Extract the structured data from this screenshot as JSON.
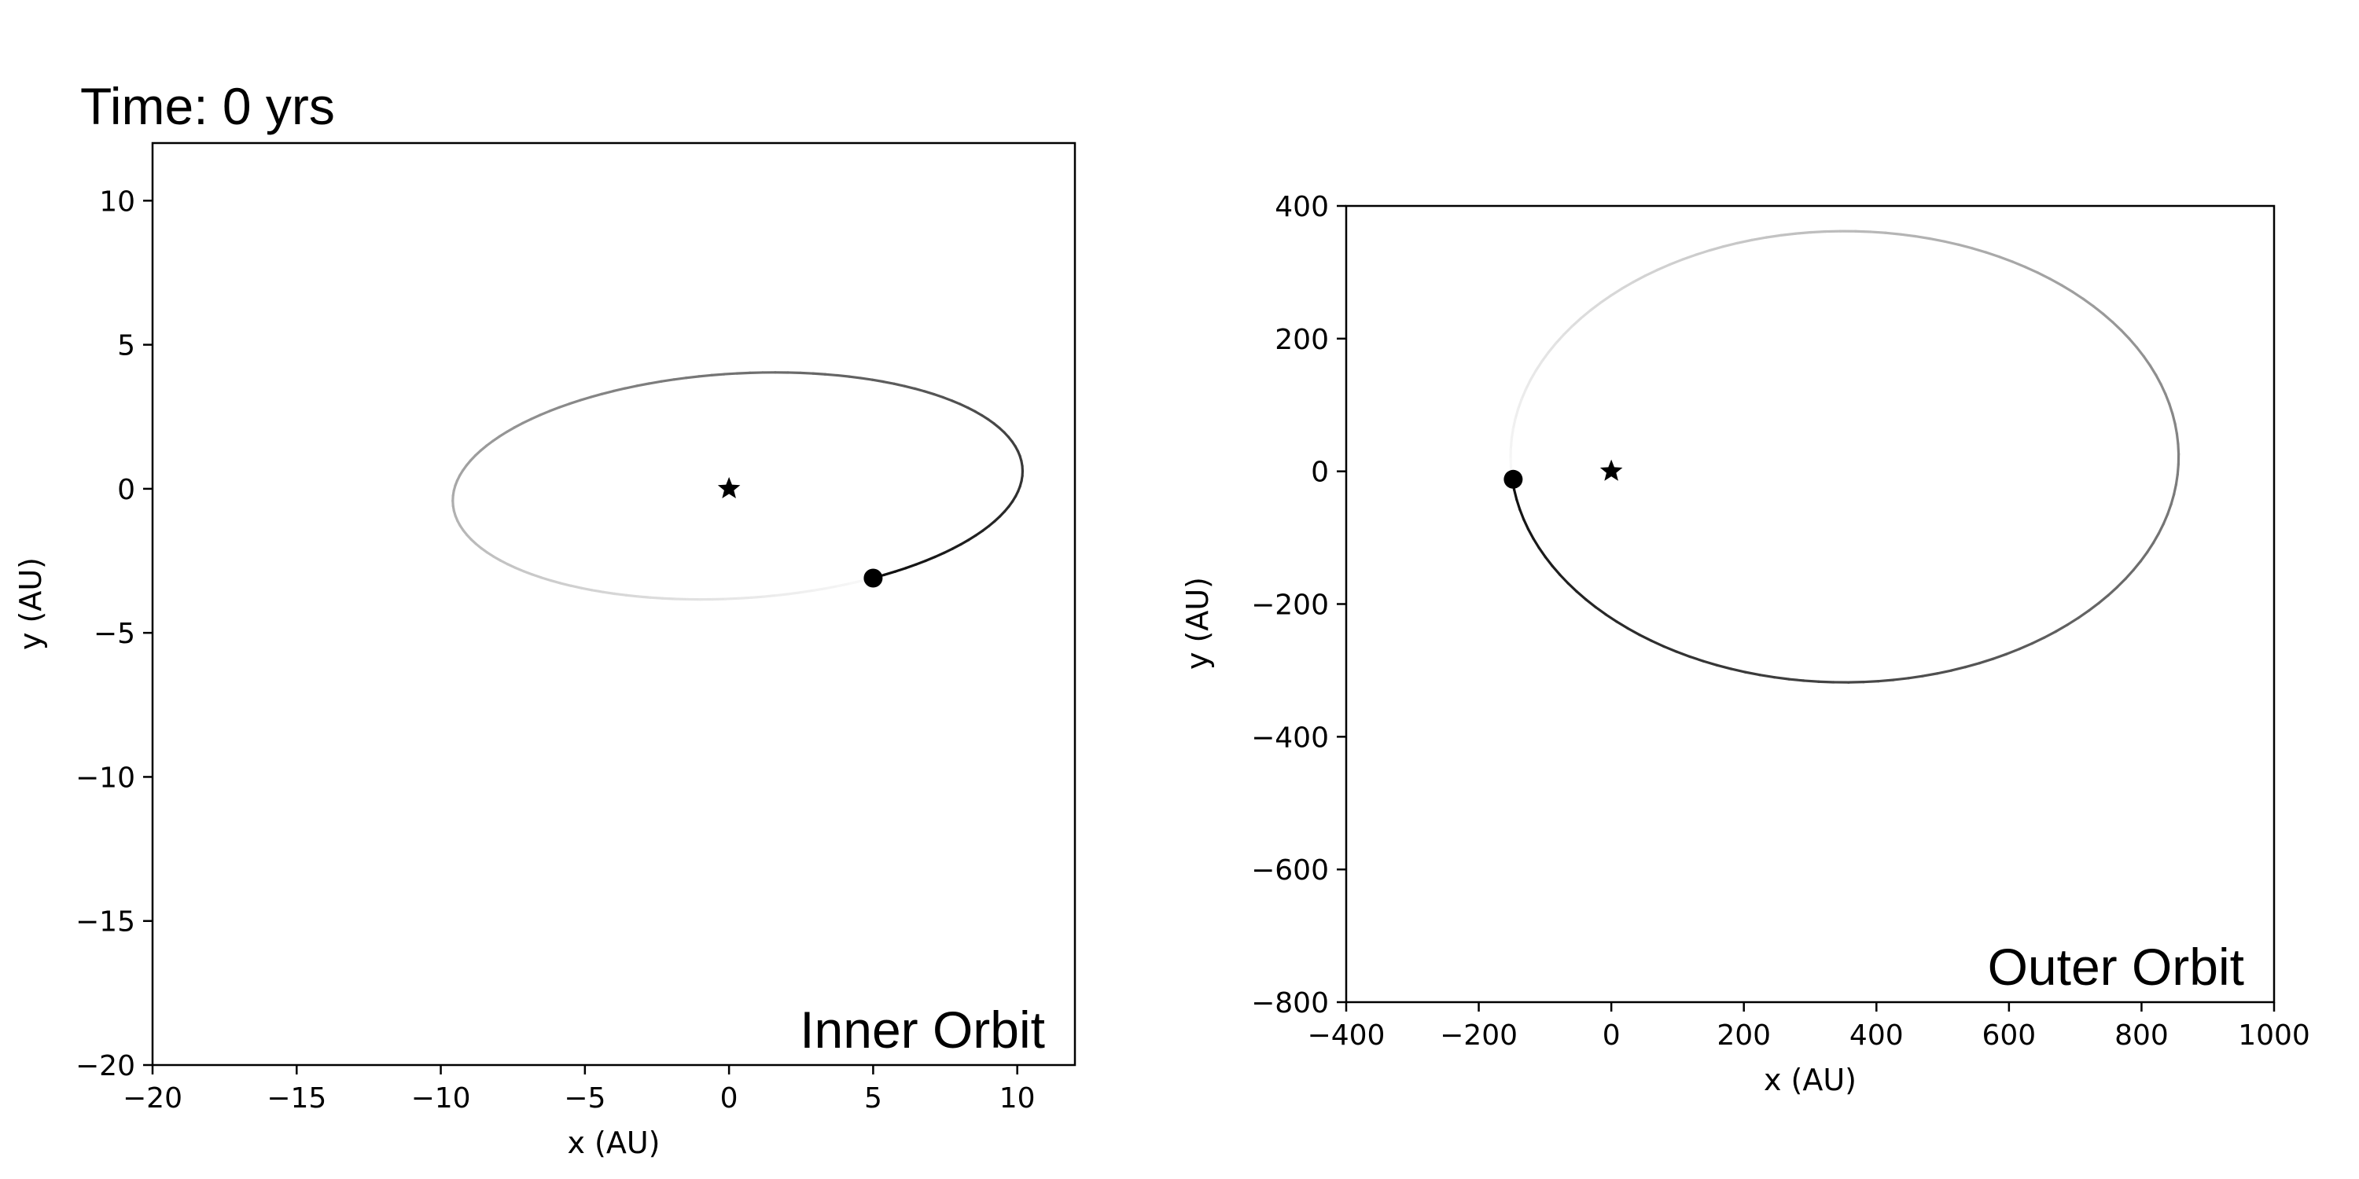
{
  "figure": {
    "title": "Time: 0 yrs"
  },
  "chart_data": [
    {
      "type": "line",
      "panel_label": "Inner Orbit",
      "xlabel": "x (AU)",
      "ylabel": "y (AU)",
      "xlim": [
        -20,
        12
      ],
      "ylim": [
        -20,
        12
      ],
      "xticks": [
        -20,
        -15,
        -10,
        -5,
        0,
        5,
        10
      ],
      "yticks": [
        -20,
        -15,
        -10,
        -5,
        0,
        5,
        10
      ],
      "tick_labels_x": [
        "−20",
        "−15",
        "−10",
        "−5",
        "0",
        "5",
        "10"
      ],
      "tick_labels_y": [
        "−20",
        "−15",
        "−10",
        "−5",
        "0",
        "5",
        "10"
      ],
      "grid": false,
      "orbit": {
        "center": [
          0.3,
          0.1
        ],
        "semi_axes": [
          9.9,
          3.9
        ],
        "rotation_deg": 3.5,
        "fade": "clockwise-from-body"
      },
      "star": {
        "x": 0,
        "y": 0,
        "marker": "star"
      },
      "body": {
        "x": 5,
        "y": -3.1,
        "marker": "circle"
      }
    },
    {
      "type": "line",
      "panel_label": "Outer Orbit",
      "xlabel": "x (AU)",
      "ylabel": "y (AU)",
      "xlim": [
        -400,
        1000
      ],
      "ylim": [
        -800,
        400
      ],
      "xticks": [
        -400,
        -200,
        0,
        200,
        400,
        600,
        800,
        1000
      ],
      "yticks": [
        -800,
        -600,
        -400,
        -200,
        0,
        200,
        400
      ],
      "tick_labels_x": [
        "−400",
        "−200",
        "0",
        "200",
        "400",
        "600",
        "800",
        "1000"
      ],
      "tick_labels_y": [
        "−800",
        "−600",
        "−400",
        "−200",
        "0",
        "200",
        "400"
      ],
      "grid": false,
      "orbit": {
        "center": [
          352,
          22
        ],
        "semi_axes": [
          504,
          340
        ],
        "rotation_deg": 0,
        "fade": "clockwise-from-body"
      },
      "star": {
        "x": 0,
        "y": 0,
        "marker": "star"
      },
      "body": {
        "x": -148,
        "y": -12,
        "marker": "circle"
      }
    }
  ]
}
